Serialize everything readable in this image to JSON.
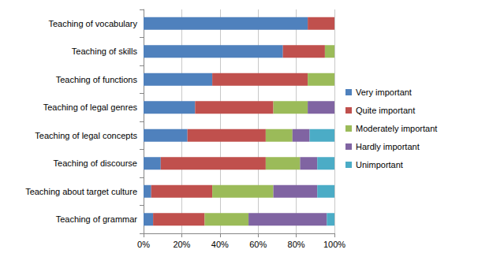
{
  "chart_data": {
    "type": "bar",
    "orientation": "horizontal",
    "stacked": true,
    "grid": true,
    "legend": "right",
    "categories": [
      "Teaching of vocabulary",
      "Teaching of skills",
      "Teaching of functions",
      "Teaching of legal genres",
      "Teaching of legal concepts",
      "Teaching of discourse",
      "Teaching about target culture",
      "Teaching of grammar"
    ],
    "series": [
      {
        "name": "Very important",
        "color": "#4f81bd",
        "values": [
          86,
          73,
          36,
          27,
          23,
          9,
          4,
          5
        ]
      },
      {
        "name": "Quite important",
        "color": "#c0504d",
        "values": [
          14,
          22,
          50,
          41,
          41,
          55,
          32,
          27
        ]
      },
      {
        "name": "Moderately important",
        "color": "#9bbb59",
        "values": [
          0,
          5,
          14,
          18,
          14,
          18,
          32,
          23
        ]
      },
      {
        "name": "Hardly important",
        "color": "#8064a2",
        "values": [
          0,
          0,
          0,
          14,
          9,
          9,
          23,
          41
        ]
      },
      {
        "name": "Unimportant",
        "color": "#4bacc6",
        "values": [
          0,
          0,
          0,
          0,
          13,
          9,
          9,
          4
        ]
      }
    ],
    "xlim": [
      0,
      100
    ],
    "xticks": [
      {
        "value": 0,
        "label": "0%"
      },
      {
        "value": 20,
        "label": "20%"
      },
      {
        "value": 40,
        "label": "40%"
      },
      {
        "value": 60,
        "label": "60%"
      },
      {
        "value": 80,
        "label": "80%"
      },
      {
        "value": 100,
        "label": "100%"
      }
    ]
  }
}
